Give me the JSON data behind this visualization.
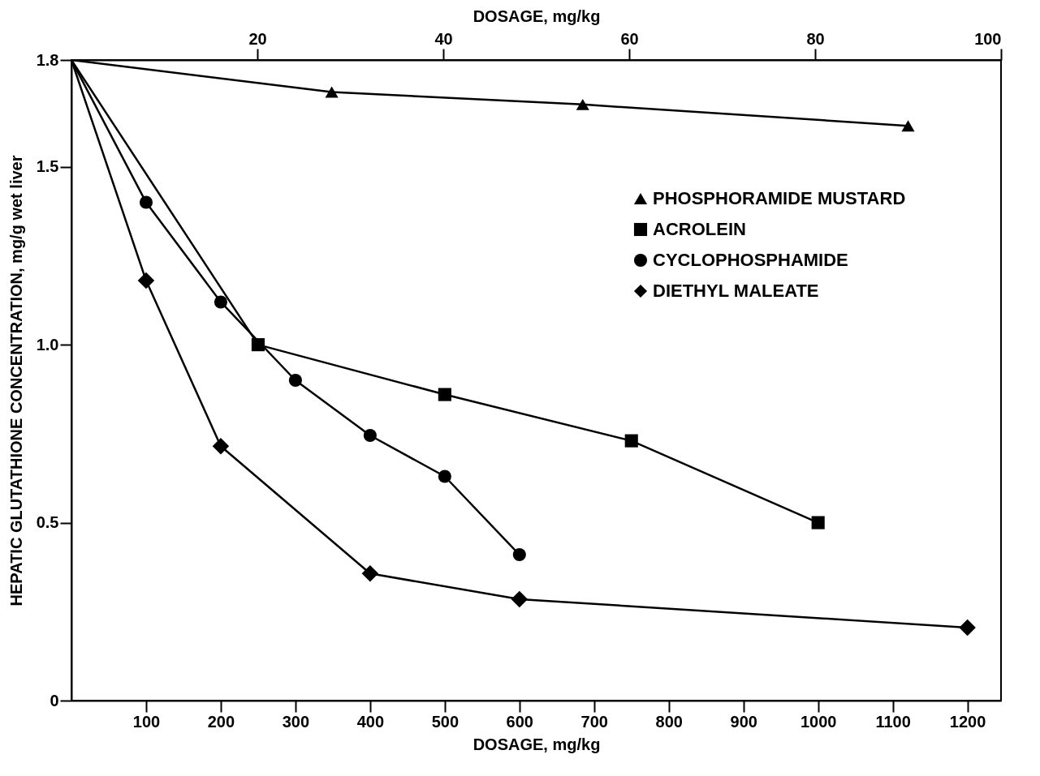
{
  "chart_data": {
    "type": "line",
    "xlabel": "DOSAGE, mg/kg",
    "x2label": "DOSAGE, mg/kg",
    "ylabel": "HEPATIC GLUTATHIONE CONCENTRATION, mg/g wet liver",
    "xlim": [
      0,
      1245
    ],
    "xticks": [
      100,
      200,
      300,
      400,
      500,
      600,
      700,
      800,
      900,
      1000,
      1100,
      1200
    ],
    "x2lim": [
      0,
      100
    ],
    "x2ticks": [
      20,
      40,
      60,
      80,
      100
    ],
    "ylim": [
      0,
      1.8
    ],
    "yticks": [
      0,
      0.5,
      {
        "value": 1,
        "label": "1.0"
      },
      1.5,
      1.8
    ],
    "grid": false,
    "legend": "top right",
    "series": [
      {
        "name": "PHOSPHORAMIDE MUSTARD",
        "color": "#000000",
        "marker": "triangle",
        "axis": "x2",
        "x": [
          0,
          28,
          55,
          90
        ],
        "values": [
          1.8,
          1.71,
          1.675,
          1.615
        ]
      },
      {
        "name": "ACROLEIN",
        "color": "#000000",
        "marker": "square",
        "x": [
          0,
          250,
          500,
          750,
          1000
        ],
        "values": [
          1.8,
          1.0,
          0.86,
          0.73,
          0.5
        ]
      },
      {
        "name": "CYCLOPHOSPHAMIDE",
        "color": "#000000",
        "marker": "circle",
        "x": [
          0,
          100,
          200,
          300,
          400,
          500,
          600
        ],
        "values": [
          1.8,
          1.4,
          1.12,
          0.9,
          0.745,
          0.63,
          0.41
        ]
      },
      {
        "name": "DIETHYL MALEATE",
        "color": "#000000",
        "marker": "diamond",
        "x": [
          0,
          100,
          200,
          400,
          600,
          1200
        ],
        "values": [
          1.8,
          1.18,
          0.715,
          0.357,
          0.285,
          0.205
        ]
      }
    ]
  }
}
